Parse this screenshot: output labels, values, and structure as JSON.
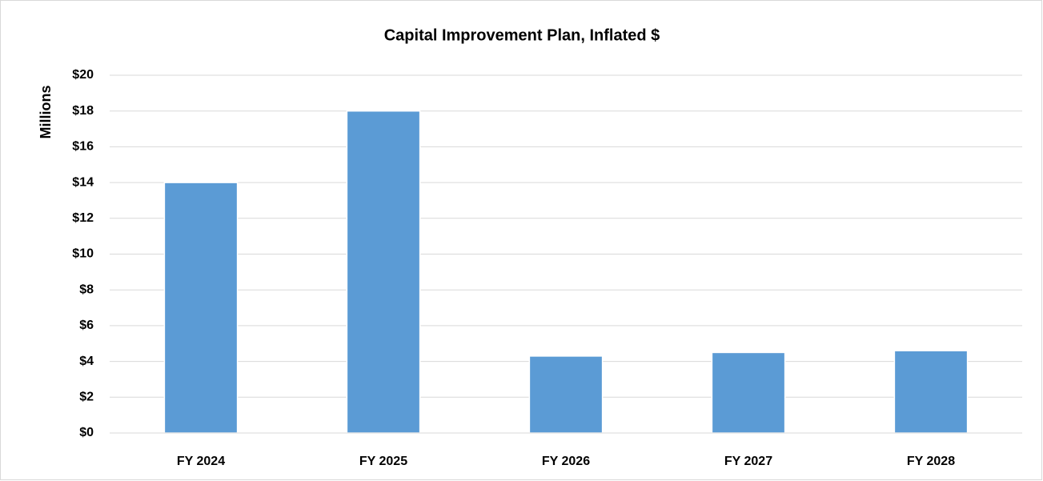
{
  "chart_data": {
    "type": "bar",
    "title": "Capital Improvement Plan, Inflated $",
    "y_label": "Millions",
    "categories": [
      "FY 2024",
      "FY 2025",
      "FY 2026",
      "FY 2027",
      "FY 2028"
    ],
    "values": [
      14.0,
      18.0,
      4.3,
      4.5,
      4.6
    ],
    "color": "#5b9bd5",
    "ylim": [
      0,
      20
    ],
    "yticks": [
      {
        "value": 0,
        "label": "$0"
      },
      {
        "value": 2,
        "label": "$2"
      },
      {
        "value": 4,
        "label": "$4"
      },
      {
        "value": 6,
        "label": "$6"
      },
      {
        "value": 8,
        "label": "$8"
      },
      {
        "value": 10,
        "label": "$10"
      },
      {
        "value": 12,
        "label": "$12"
      },
      {
        "value": 14,
        "label": "$14"
      },
      {
        "value": 16,
        "label": "$16"
      },
      {
        "value": 18,
        "label": "$18"
      },
      {
        "value": 20,
        "label": "$20"
      }
    ],
    "grid": true
  }
}
